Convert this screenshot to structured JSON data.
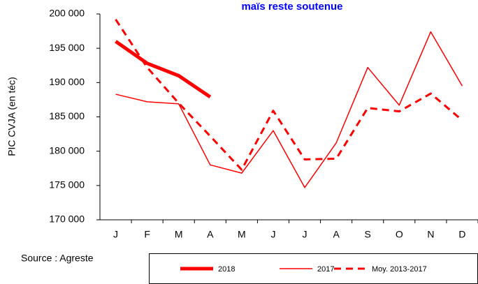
{
  "chart_data": {
    "type": "line",
    "title": "maïs reste  soutenue",
    "y_label": "PIC CVJA (en téc)",
    "source": "Source : Agreste",
    "categories": [
      "J",
      "F",
      "M",
      "A",
      "M",
      "J",
      "J",
      "A",
      "S",
      "O",
      "N",
      "D"
    ],
    "series": [
      {
        "name": "2018",
        "color": "#ff0000",
        "style": "thick",
        "values": [
          196000,
          192800,
          191000,
          187900,
          null,
          null,
          null,
          null,
          null,
          null,
          null,
          null
        ]
      },
      {
        "name": "2017",
        "color": "#ff0000",
        "style": "thin",
        "values": [
          188300,
          187200,
          186900,
          178000,
          176800,
          183000,
          174700,
          181200,
          192200,
          186700,
          197400,
          189500
        ]
      },
      {
        "name": "Moy. 2013-2017",
        "color": "#ff0000",
        "style": "dashed",
        "values": [
          199200,
          192200,
          187000,
          182200,
          177300,
          185900,
          178800,
          178900,
          186300,
          185800,
          188400,
          184500
        ]
      }
    ],
    "ylim": [
      170000,
      200000
    ],
    "yticks": [
      {
        "value": 170000,
        "label": "170 000"
      },
      {
        "value": 175000,
        "label": "175 000"
      },
      {
        "value": 180000,
        "label": "180 000"
      },
      {
        "value": 185000,
        "label": "185 000"
      },
      {
        "value": 190000,
        "label": "190 000"
      },
      {
        "value": 195000,
        "label": "195 000"
      },
      {
        "value": 200000,
        "label": "200 000"
      }
    ],
    "grid": false
  }
}
